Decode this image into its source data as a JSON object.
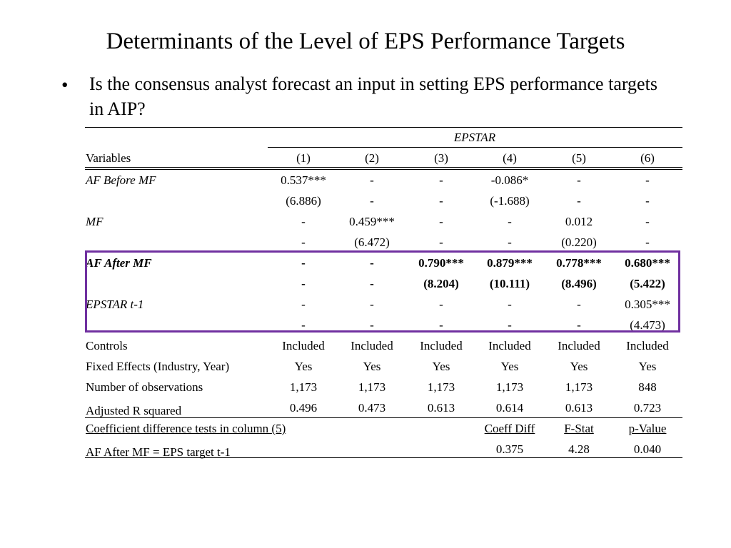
{
  "title": "Determinants of the Level of EPS Performance Targets",
  "bullet": {
    "marker": "•",
    "text": "Is the consensus analyst forecast an input in setting EPS performance targets in AIP?"
  },
  "table": {
    "dependent": "EPSTAR",
    "var_header": "Variables",
    "columns": [
      "(1)",
      "(2)",
      "(3)",
      "(4)",
      "(5)",
      "(6)"
    ],
    "rows": [
      {
        "label": "AF Before MF",
        "style": "italic",
        "cells": [
          "0.537***",
          "-",
          "-",
          "-0.086*",
          "-",
          "-"
        ]
      },
      {
        "label": "",
        "style": "",
        "cells": [
          "(6.886)",
          "-",
          "-",
          "(-1.688)",
          "-",
          "-"
        ]
      },
      {
        "label": "MF",
        "style": "italic",
        "cells": [
          "-",
          "0.459***",
          "-",
          "-",
          "0.012",
          "-"
        ]
      },
      {
        "label": "",
        "style": "",
        "cells": [
          "-",
          "(6.472)",
          "-",
          "-",
          "(0.220)",
          "-"
        ]
      },
      {
        "label": "AF After MF",
        "style": "bold-italic",
        "cells": [
          "-",
          "-",
          "0.790***",
          "0.879***",
          "0.778***",
          "0.680***"
        ]
      },
      {
        "label": "",
        "style": "bold",
        "cells": [
          "-",
          "-",
          "(8.204)",
          "(10.111)",
          "(8.496)",
          "(5.422)"
        ]
      },
      {
        "label": "EPSTAR t-1",
        "style": "italic",
        "cells": [
          "-",
          "-",
          "-",
          "-",
          "-",
          "0.305***"
        ]
      },
      {
        "label": "",
        "style": "",
        "cells": [
          "-",
          "-",
          "-",
          "-",
          "-",
          "(4.473)"
        ]
      },
      {
        "label": "Controls",
        "style": "",
        "cells": [
          "Included",
          "Included",
          "Included",
          "Included",
          "Included",
          "Included"
        ]
      },
      {
        "label": "Fixed Effects (Industry, Year)",
        "style": "",
        "cells": [
          "Yes",
          "Yes",
          "Yes",
          "Yes",
          "Yes",
          "Yes"
        ]
      },
      {
        "label": "Number of observations",
        "style": "",
        "cells": [
          "1,173",
          "1,173",
          "1,173",
          "1,173",
          "1,173",
          "848"
        ]
      },
      {
        "label": "Adjusted R squared",
        "style": "",
        "cells": [
          "0.496",
          "0.473",
          "0.613",
          "0.614",
          "0.613",
          "0.723"
        ]
      }
    ],
    "diff_tests": {
      "label": "Coefficient difference tests in column (5)",
      "headers": [
        "Coeff Diff",
        "F-Stat",
        "p-Value"
      ],
      "row_label": "AF After MF = EPS target t-1",
      "values": [
        "0.375",
        "4.28",
        "0.040"
      ]
    }
  },
  "colors": {
    "highlight_box": "#7030a0",
    "rule": "#000000"
  }
}
